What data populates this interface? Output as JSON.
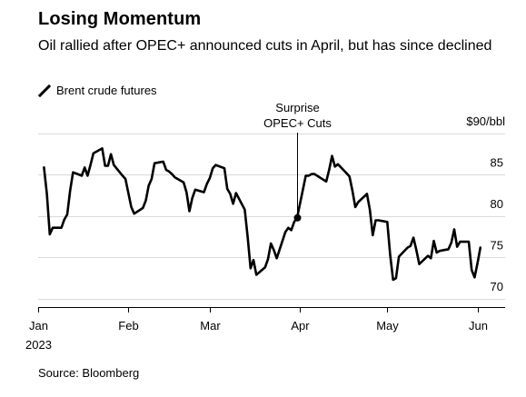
{
  "header": {
    "title": "Losing Momentum",
    "subtitle": "Oil rallied after OPEC+ announced cuts in April, but has since declined"
  },
  "legend": {
    "label": "Brent crude futures",
    "icon": "line-icon"
  },
  "footer": {
    "source": "Source: Bloomberg"
  },
  "colors": {
    "line": "#000000",
    "grid": "#d9d9d9",
    "axis": "#000000"
  },
  "chart_data": {
    "type": "line",
    "title": "Losing Momentum",
    "subtitle": "Oil rallied after OPEC+ announced cuts in April, but has since declined",
    "ylabel": "$90/bbl",
    "y_unit_label": "$90/bbl",
    "ylim": [
      69,
      90
    ],
    "yticks": [
      70,
      75,
      80,
      85
    ],
    "ytick_labels": [
      "70",
      "75",
      "80",
      "85"
    ],
    "xlim": [
      "2023-01-01",
      "2023-06-08"
    ],
    "xticks": [
      "2023-01-01",
      "2023-02-01",
      "2023-03-01",
      "2023-04-01",
      "2023-05-01",
      "2023-06-01"
    ],
    "xtick_labels": [
      "Jan",
      "Feb",
      "Mar",
      "Apr",
      "May",
      "Jun"
    ],
    "xtick_sublabel": "2023",
    "grid": true,
    "legend_position": "top-left",
    "series": [
      {
        "name": "Brent crude futures",
        "x": [
          "2023-01-03",
          "2023-01-04",
          "2023-01-05",
          "2023-01-06",
          "2023-01-09",
          "2023-01-10",
          "2023-01-11",
          "2023-01-12",
          "2023-01-13",
          "2023-01-16",
          "2023-01-17",
          "2023-01-18",
          "2023-01-19",
          "2023-01-20",
          "2023-01-23",
          "2023-01-24",
          "2023-01-25",
          "2023-01-26",
          "2023-01-27",
          "2023-01-30",
          "2023-01-31",
          "2023-02-01",
          "2023-02-02",
          "2023-02-03",
          "2023-02-06",
          "2023-02-07",
          "2023-02-08",
          "2023-02-09",
          "2023-02-10",
          "2023-02-13",
          "2023-02-14",
          "2023-02-15",
          "2023-02-16",
          "2023-02-17",
          "2023-02-20",
          "2023-02-21",
          "2023-02-22",
          "2023-02-23",
          "2023-02-24",
          "2023-02-27",
          "2023-02-28",
          "2023-03-01",
          "2023-03-02",
          "2023-03-03",
          "2023-03-06",
          "2023-03-07",
          "2023-03-08",
          "2023-03-09",
          "2023-03-10",
          "2023-03-13",
          "2023-03-14",
          "2023-03-15",
          "2023-03-16",
          "2023-03-17",
          "2023-03-20",
          "2023-03-21",
          "2023-03-22",
          "2023-03-23",
          "2023-03-24",
          "2023-03-27",
          "2023-03-28",
          "2023-03-29",
          "2023-03-30",
          "2023-03-31",
          "2023-04-03",
          "2023-04-04",
          "2023-04-05",
          "2023-04-06",
          "2023-04-10",
          "2023-04-11",
          "2023-04-12",
          "2023-04-13",
          "2023-04-14",
          "2023-04-17",
          "2023-04-18",
          "2023-04-19",
          "2023-04-20",
          "2023-04-21",
          "2023-04-24",
          "2023-04-25",
          "2023-04-26",
          "2023-04-27",
          "2023-04-28",
          "2023-05-01",
          "2023-05-02",
          "2023-05-03",
          "2023-05-04",
          "2023-05-05",
          "2023-05-08",
          "2023-05-09",
          "2023-05-10",
          "2023-05-11",
          "2023-05-12",
          "2023-05-15",
          "2023-05-16",
          "2023-05-17",
          "2023-05-18",
          "2023-05-19",
          "2023-05-22",
          "2023-05-23",
          "2023-05-24",
          "2023-05-25",
          "2023-05-26",
          "2023-05-29",
          "2023-05-30",
          "2023-05-31",
          "2023-06-01",
          "2023-06-02"
        ],
        "values": [
          85.9,
          82.7,
          77.8,
          78.6,
          78.6,
          79.6,
          80.2,
          83.1,
          85.3,
          84.9,
          85.9,
          84.9,
          86.2,
          87.6,
          88.2,
          86.1,
          86.1,
          87.5,
          86.2,
          84.9,
          84.5,
          82.8,
          81.1,
          80.3,
          81.0,
          81.9,
          83.7,
          84.5,
          86.4,
          86.6,
          85.6,
          85.4,
          85.1,
          84.7,
          84.1,
          82.9,
          80.6,
          82.2,
          83.2,
          82.9,
          83.9,
          84.6,
          85.8,
          86.2,
          85.8,
          83.3,
          82.7,
          81.5,
          82.8,
          80.8,
          77.5,
          73.7,
          74.7,
          72.9,
          73.8,
          74.8,
          76.7,
          75.9,
          74.9,
          78.1,
          78.6,
          78.3,
          79.3,
          79.8,
          84.9,
          84.9,
          85.1,
          85.1,
          84.2,
          85.6,
          87.3,
          86.0,
          86.3,
          85.2,
          84.8,
          83.1,
          81.1,
          81.7,
          82.7,
          80.8,
          77.7,
          79.5,
          79.5,
          79.3,
          75.3,
          72.3,
          72.5,
          75.1,
          76.2,
          76.4,
          77.4,
          75.9,
          74.2,
          75.2,
          74.9,
          77.0,
          75.6,
          75.8,
          76.0,
          76.8,
          78.4,
          76.3,
          76.9,
          76.9,
          73.5,
          72.6,
          74.3,
          76.2
        ]
      }
    ],
    "annotations": [
      {
        "label_lines": [
          "Surprise",
          "OPEC+ Cuts"
        ],
        "x": "2023-03-31",
        "y": 79.8,
        "marker": "dot"
      }
    ]
  }
}
